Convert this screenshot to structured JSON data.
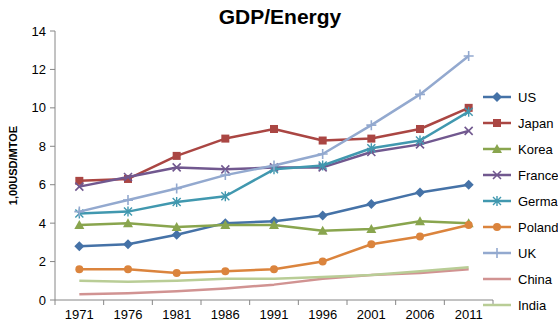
{
  "chart_data": {
    "type": "line",
    "title": "GDP/Energy",
    "y_label": "1,00USD/MTOE",
    "categories": [
      "1971",
      "1976",
      "1981",
      "1986",
      "1991",
      "1996",
      "2001",
      "2006",
      "2011"
    ],
    "ylim": [
      0,
      14
    ],
    "yticks": [
      0,
      2,
      4,
      6,
      8,
      10,
      12,
      14
    ],
    "grid": false,
    "legend": "right",
    "series": [
      {
        "name": "US",
        "color": "#4572a7",
        "marker": "diamond",
        "line_style": "solid",
        "values": [
          2.8,
          2.9,
          3.4,
          4.0,
          4.1,
          4.4,
          5.0,
          5.6,
          6.0
        ]
      },
      {
        "name": "Japan",
        "color": "#aa4643",
        "marker": "square",
        "line_style": "solid",
        "values": [
          6.2,
          6.3,
          7.5,
          8.4,
          8.9,
          8.3,
          8.4,
          8.9,
          10.0
        ]
      },
      {
        "name": "Korea",
        "color": "#89a54e",
        "marker": "triangle",
        "line_style": "solid",
        "values": [
          3.9,
          4.0,
          3.8,
          3.9,
          3.9,
          3.6,
          3.7,
          4.1,
          4.0
        ]
      },
      {
        "name": "France",
        "color": "#71588f",
        "marker": "x",
        "line_style": "solid",
        "values": [
          5.9,
          6.4,
          6.9,
          6.8,
          6.9,
          6.9,
          7.7,
          8.1,
          8.8
        ]
      },
      {
        "name": "Germany",
        "color": "#4198af",
        "marker": "star",
        "line_style": "solid",
        "values": [
          4.5,
          4.6,
          5.1,
          5.4,
          6.8,
          7.0,
          7.9,
          8.3,
          9.8
        ]
      },
      {
        "name": "Poland",
        "color": "#db843d",
        "marker": "circle",
        "line_style": "solid",
        "values": [
          1.6,
          1.6,
          1.4,
          1.5,
          1.6,
          2.0,
          2.9,
          3.3,
          3.9
        ]
      },
      {
        "name": "UK",
        "color": "#93a9cf",
        "marker": "plus",
        "line_style": "solid",
        "values": [
          4.6,
          5.2,
          5.8,
          6.5,
          7.0,
          7.6,
          9.1,
          10.7,
          12.7
        ]
      },
      {
        "name": "China",
        "color": "#d19392",
        "marker": "none",
        "line_style": "solid",
        "values": [
          0.3,
          0.35,
          0.45,
          0.6,
          0.8,
          1.1,
          1.3,
          1.4,
          1.6
        ]
      },
      {
        "name": "India",
        "color": "#b9cd96",
        "marker": "none",
        "line_style": "solid",
        "values": [
          1.0,
          0.95,
          1.0,
          1.1,
          1.1,
          1.2,
          1.3,
          1.5,
          1.7
        ]
      }
    ]
  }
}
